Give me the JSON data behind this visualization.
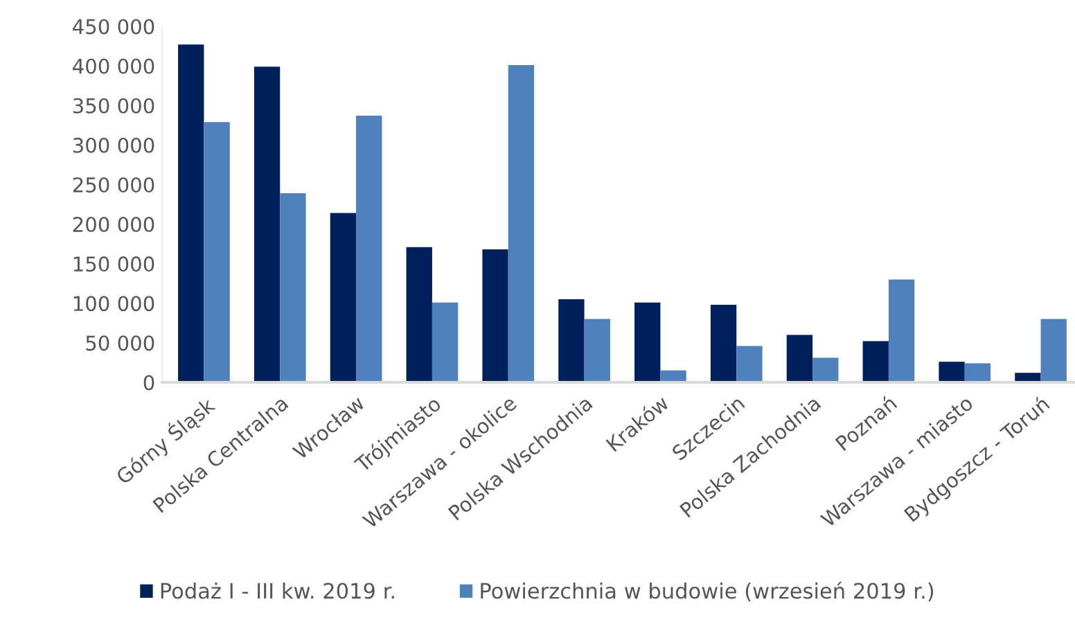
{
  "chart_data": {
    "type": "bar",
    "categories": [
      "Górny Śląsk",
      "Polska Centralna",
      "Wrocław",
      "Trójmiasto",
      "Warszawa - okolice",
      "Polska Wschodnia",
      "Kraków",
      "Szczecin",
      "Polska Zachodnia",
      "Poznań",
      "Warszawa - miasto",
      "Bydgoszcz - Toruń"
    ],
    "series": [
      {
        "name": "Podaż I - III kw. 2019 r.",
        "color": "#00205b",
        "values": [
          427000,
          399000,
          214000,
          171000,
          168000,
          105000,
          101000,
          98000,
          60000,
          52000,
          26000,
          12000
        ]
      },
      {
        "name": "Powierzchnia w budowie (wrzesień 2019 r.)",
        "color": "#4f81bd",
        "values": [
          329000,
          239000,
          337000,
          101000,
          401000,
          80000,
          15000,
          46000,
          31000,
          130000,
          24000,
          80000
        ]
      }
    ],
    "ylim": [
      0,
      450000
    ],
    "yticks": [
      {
        "value": 0,
        "label": "0"
      },
      {
        "value": 50000,
        "label": "50 000"
      },
      {
        "value": 100000,
        "label": "100 000"
      },
      {
        "value": 150000,
        "label": "150 000"
      },
      {
        "value": 200000,
        "label": "200 000"
      },
      {
        "value": 250000,
        "label": "250 000"
      },
      {
        "value": 300000,
        "label": "300 000"
      },
      {
        "value": 350000,
        "label": "350 000"
      },
      {
        "value": 400000,
        "label": "400 000"
      },
      {
        "value": 450000,
        "label": "450 000"
      }
    ],
    "grid": false,
    "legend": "bottom"
  }
}
